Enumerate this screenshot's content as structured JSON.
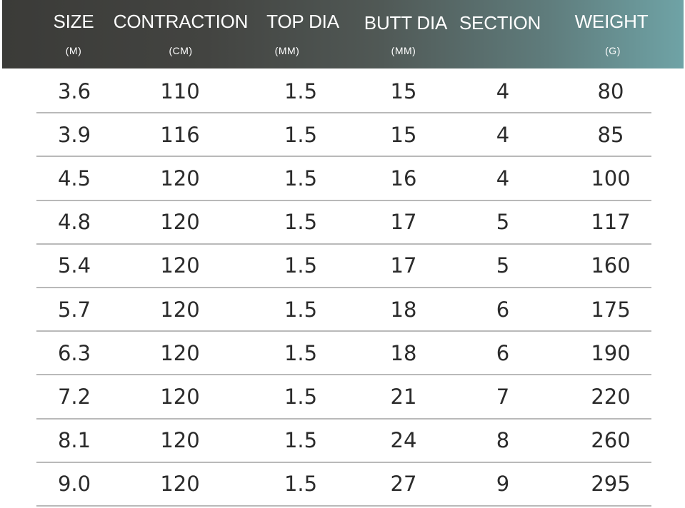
{
  "table": {
    "columns": [
      {
        "name": "SIZE",
        "unit": "(M)"
      },
      {
        "name": "CONTRACTION",
        "unit": "(CM)"
      },
      {
        "name": "TOP DIA",
        "unit": "(MM)"
      },
      {
        "name": "BUTT DIA",
        "unit": "(MM)"
      },
      {
        "name": "SECTION",
        "unit": ""
      },
      {
        "name": "WEIGHT",
        "unit": "(G)"
      }
    ],
    "rows": [
      [
        "3.6",
        "110",
        "1.5",
        "15",
        "4",
        "80"
      ],
      [
        "3.9",
        "116",
        "1.5",
        "15",
        "4",
        "85"
      ],
      [
        "4.5",
        "120",
        "1.5",
        "16",
        "4",
        "100"
      ],
      [
        "4.8",
        "120",
        "1.5",
        "17",
        "5",
        "117"
      ],
      [
        "5.4",
        "120",
        "1.5",
        "17",
        "5",
        "160"
      ],
      [
        "5.7",
        "120",
        "1.5",
        "18",
        "6",
        "175"
      ],
      [
        "6.3",
        "120",
        "1.5",
        "18",
        "6",
        "190"
      ],
      [
        "7.2",
        "120",
        "1.5",
        "21",
        "7",
        "220"
      ],
      [
        "8.1",
        "120",
        "1.5",
        "24",
        "8",
        "260"
      ],
      [
        "9.0",
        "120",
        "1.5",
        "27",
        "9",
        "295"
      ]
    ]
  }
}
